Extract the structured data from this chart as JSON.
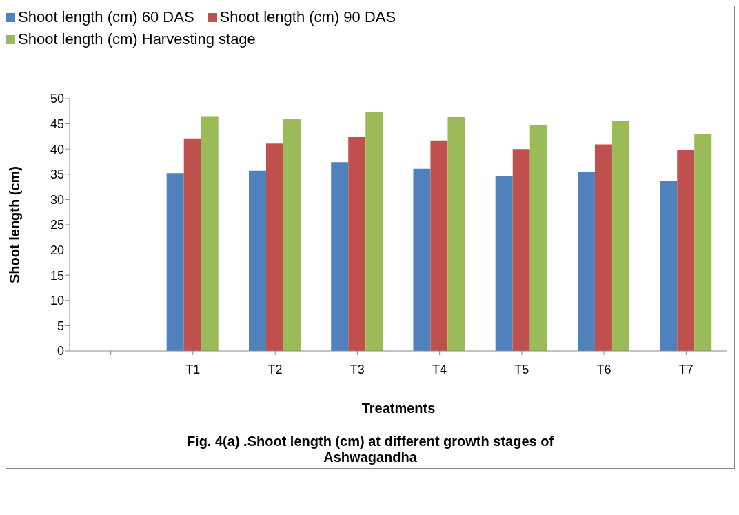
{
  "chart_data": {
    "type": "bar",
    "title": "Fig. 4(a) .Shoot length (cm) at different growth stages of Ashwagandha",
    "xlabel": "Treatments",
    "ylabel": "Shoot length (cm)",
    "categories": [
      null,
      "T1",
      "T2",
      "T3",
      "T4",
      "T5",
      "T6",
      "T7"
    ],
    "series": [
      {
        "name": "Shoot length (cm) 60 DAS",
        "color": "#4f81bd",
        "values": [
          null,
          35.2,
          35.7,
          37.4,
          36.1,
          34.7,
          35.4,
          33.6
        ]
      },
      {
        "name": "Shoot length (cm) 90 DAS",
        "color": "#c0504d",
        "values": [
          null,
          42.1,
          41.1,
          42.5,
          41.7,
          40.0,
          40.9,
          39.9
        ]
      },
      {
        "name": "Shoot length (cm) Harvesting stage",
        "color": "#9bbb59",
        "values": [
          null,
          46.5,
          46.0,
          47.4,
          46.3,
          44.7,
          45.5,
          43.0
        ]
      }
    ],
    "ylim": [
      0,
      50
    ],
    "yticks": [
      0,
      5,
      10,
      15,
      20,
      25,
      30,
      35,
      40,
      45,
      50
    ],
    "grid": false,
    "legend": "top left"
  }
}
